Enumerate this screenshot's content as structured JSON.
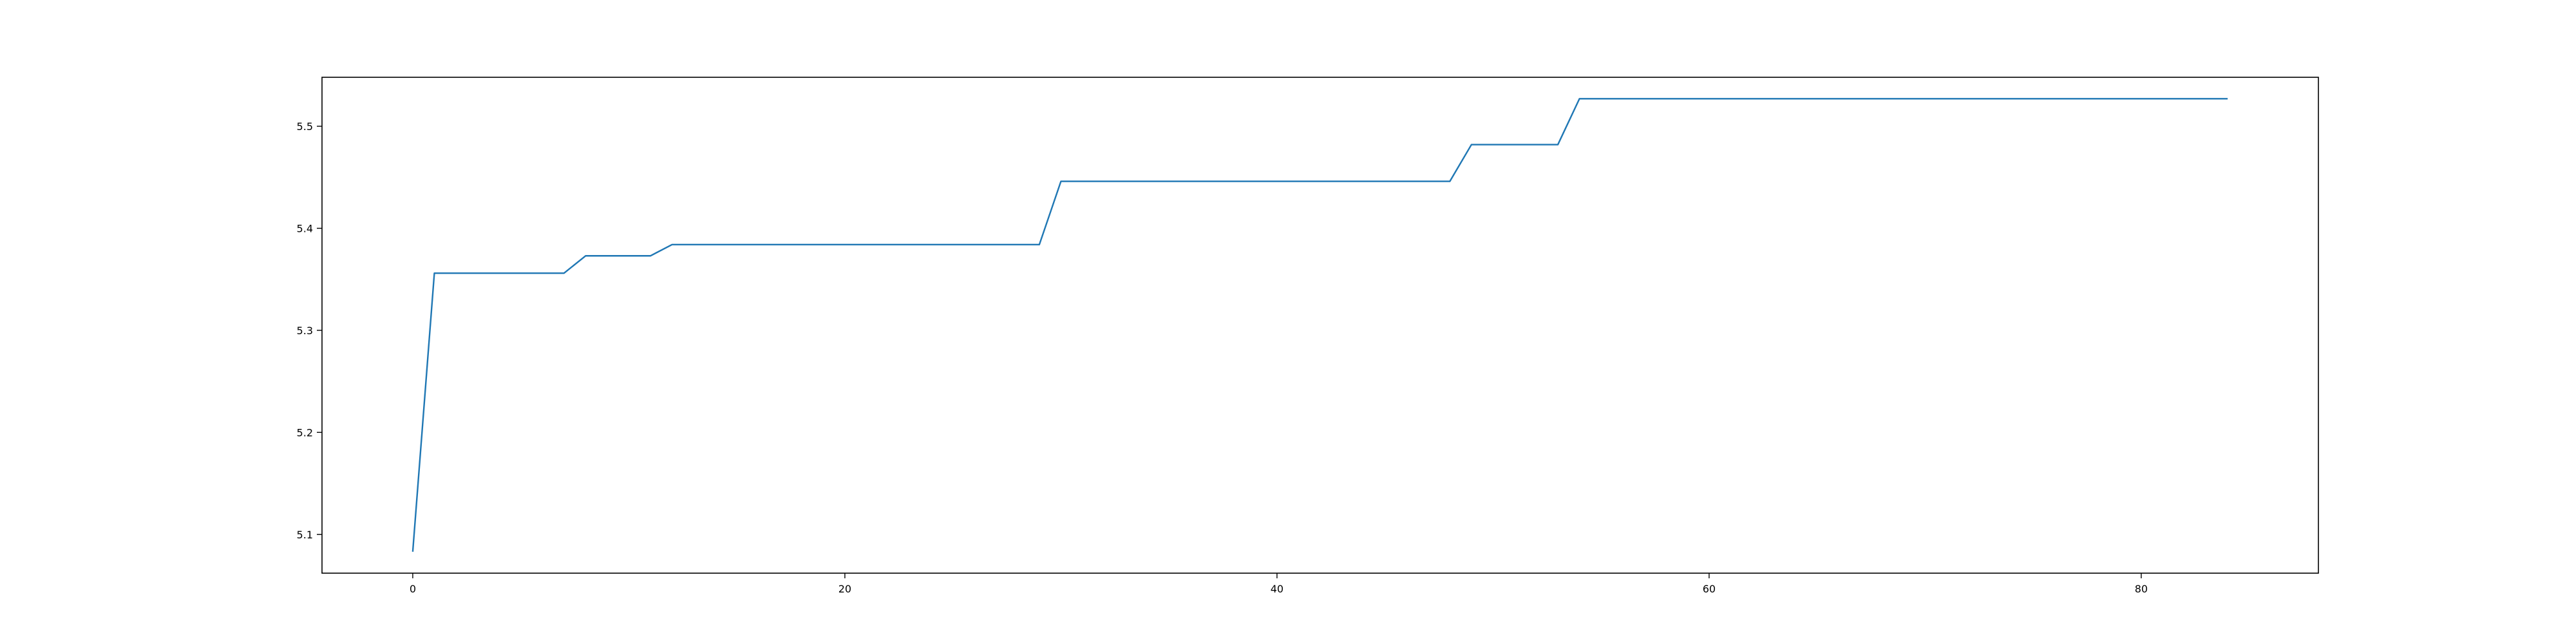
{
  "chart_data": {
    "type": "line",
    "title": "",
    "xlabel": "",
    "ylabel": "",
    "xlim": [
      -4.2,
      88.2
    ],
    "ylim": [
      5.062,
      5.548
    ],
    "xticks": [
      0,
      20,
      40,
      60,
      80
    ],
    "yticks": [
      5.1,
      5.2,
      5.3,
      5.4,
      5.5
    ],
    "xtick_labels": [
      "0",
      "20",
      "40",
      "60",
      "80"
    ],
    "ytick_labels": [
      "5.1",
      "5.2",
      "5.3",
      "5.4",
      "5.5"
    ],
    "grid": false,
    "legend": false,
    "series": [
      {
        "color": "#1f77b4",
        "x": [
          0,
          1,
          7,
          8,
          11,
          12,
          29,
          30,
          48,
          49,
          53,
          54,
          84
        ],
        "y": [
          5.083,
          5.356,
          5.356,
          5.373,
          5.373,
          5.384,
          5.384,
          5.446,
          5.446,
          5.482,
          5.482,
          5.527,
          5.527
        ]
      }
    ]
  }
}
